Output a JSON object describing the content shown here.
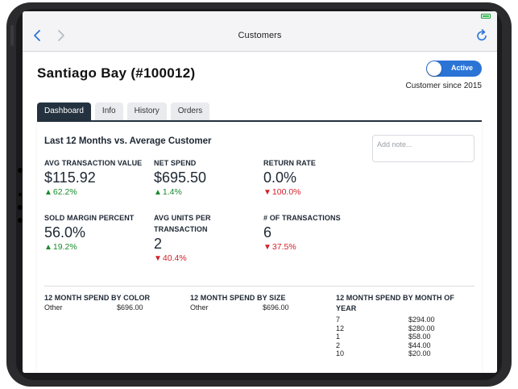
{
  "nav": {
    "title": "Customers",
    "back_icon": "chevron-left-icon",
    "forward_icon": "chevron-right-icon",
    "refresh_icon": "refresh-icon"
  },
  "customer": {
    "name": "Santiago Bay (#100012)",
    "status_label": "Active",
    "since": "Customer since 2015"
  },
  "tabs": [
    {
      "label": "Dashboard",
      "active": true
    },
    {
      "label": "Info",
      "active": false
    },
    {
      "label": "History",
      "active": false
    },
    {
      "label": "Orders",
      "active": false
    }
  ],
  "dashboard": {
    "section_title": "Last 12 Months vs. Average Customer",
    "note_placeholder": "Add note...",
    "metrics": [
      {
        "label": "AVG TRANSACTION VALUE",
        "value": "$115.92",
        "delta": "62.2%",
        "direction": "up"
      },
      {
        "label": "NET SPEND",
        "value": "$695.50",
        "delta": "1.4%",
        "direction": "up"
      },
      {
        "label": "RETURN RATE",
        "value": "0.0%",
        "delta": "100.0%",
        "direction": "down"
      },
      {
        "label": "SOLD MARGIN PERCENT",
        "value": "56.0%",
        "delta": "19.2%",
        "direction": "up"
      },
      {
        "label": "AVG UNITS PER TRANSACTION",
        "value": "2",
        "delta": "40.4%",
        "direction": "down"
      },
      {
        "label": "# OF TRANSACTIONS",
        "value": "6",
        "delta": "37.5%",
        "direction": "down"
      }
    ],
    "spend_by_color": {
      "title": "12 MONTH SPEND BY COLOR",
      "rows": [
        {
          "key": "Other",
          "value": "$696.00"
        }
      ]
    },
    "spend_by_size": {
      "title": "12 MONTH SPEND BY SIZE",
      "rows": [
        {
          "key": "Other",
          "value": "$696.00"
        }
      ]
    },
    "spend_by_month": {
      "title": "12 MONTH SPEND BY MONTH OF YEAR",
      "rows": [
        {
          "key": "7",
          "value": "$294.00"
        },
        {
          "key": "12",
          "value": "$280.00"
        },
        {
          "key": "1",
          "value": "$58.00"
        },
        {
          "key": "2",
          "value": "$44.00"
        },
        {
          "key": "10",
          "value": "$20.00"
        }
      ]
    }
  },
  "colors": {
    "accent": "#2b74d6",
    "tab_active": "#24323f",
    "positive": "#1a8a2c",
    "negative": "#d21f2a"
  }
}
